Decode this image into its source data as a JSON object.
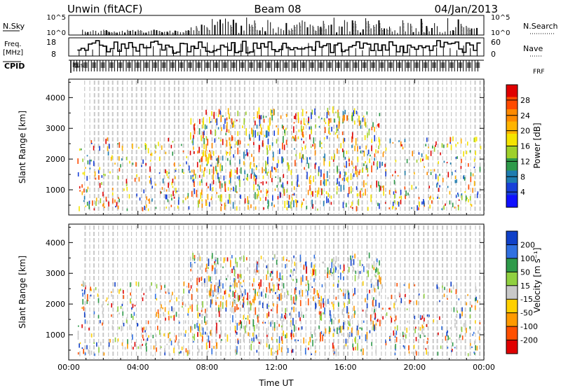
{
  "header": {
    "station": "Unwin (fitACF)",
    "beam": "Beam 08",
    "date": "04/Jan/2013"
  },
  "top_panels": {
    "nsky_label": "N.Sky",
    "nsearch_label": "N.Search",
    "nsky_ticks": [
      "10^5",
      "10^0"
    ],
    "nsearch_ticks": [
      "10^5",
      "10^0"
    ],
    "freq_label": "Freq.",
    "freq_unit": "[MHz]",
    "freq_ticks": [
      "18",
      "8"
    ],
    "nave_label": "Nave",
    "nave_ticks": [
      "60",
      "0"
    ],
    "cpid_label": "CPID",
    "cpid_mode_labels": [
      "ltus",
      "FRF"
    ]
  },
  "chart_data": [
    {
      "type": "heatmap",
      "name": "power",
      "ylabel": "Slant Range [km]",
      "xlabel": "",
      "xlim": [
        "00:00",
        "24:00"
      ],
      "ylim": [
        180,
        4600
      ],
      "y_ticks": [
        1000,
        2000,
        3000,
        4000
      ],
      "x_ticks": [
        "00:00",
        "04:00",
        "08:00",
        "12:00",
        "16:00",
        "20:00",
        "00:00"
      ],
      "colorbar": {
        "label": "Power [dB]",
        "ticks": [
          28,
          24,
          20,
          16,
          12,
          8,
          4
        ],
        "colors": [
          "#e00000",
          "#ff4a00",
          "#ff8a00",
          "#ffb400",
          "#f5e400",
          "#9ed02a",
          "#2e9a4a",
          "#1e7cb0",
          "#1840d8",
          "#1010ff"
        ]
      },
      "echo_region": {
        "x_range_hours": [
          0.5,
          23.8
        ],
        "range_km": [
          300,
          3500
        ],
        "dense_hours": [
          7,
          18
        ]
      }
    },
    {
      "type": "heatmap",
      "name": "velocity",
      "ylabel": "Slant Range [km]",
      "xlabel": "Time UT",
      "xlim": [
        "00:00",
        "24:00"
      ],
      "ylim": [
        180,
        4600
      ],
      "y_ticks": [
        1000,
        2000,
        3000,
        4000
      ],
      "x_ticks": [
        "00:00",
        "04:00",
        "08:00",
        "12:00",
        "16:00",
        "20:00",
        "00:00"
      ],
      "colorbar": {
        "label": "Velocity [m s⁻¹]",
        "ticks": [
          200,
          100,
          50,
          15,
          -15,
          -50,
          -100,
          -200
        ],
        "colors": [
          "#1040c8",
          "#3070e0",
          "#2e9a4a",
          "#90d040",
          "#c8c8c8",
          "#ffd000",
          "#ff9a00",
          "#ff5000",
          "#e00000"
        ]
      },
      "echo_region": {
        "x_range_hours": [
          0.5,
          23.8
        ],
        "range_km": [
          300,
          3500
        ],
        "dense_hours": [
          7,
          18
        ]
      }
    }
  ]
}
